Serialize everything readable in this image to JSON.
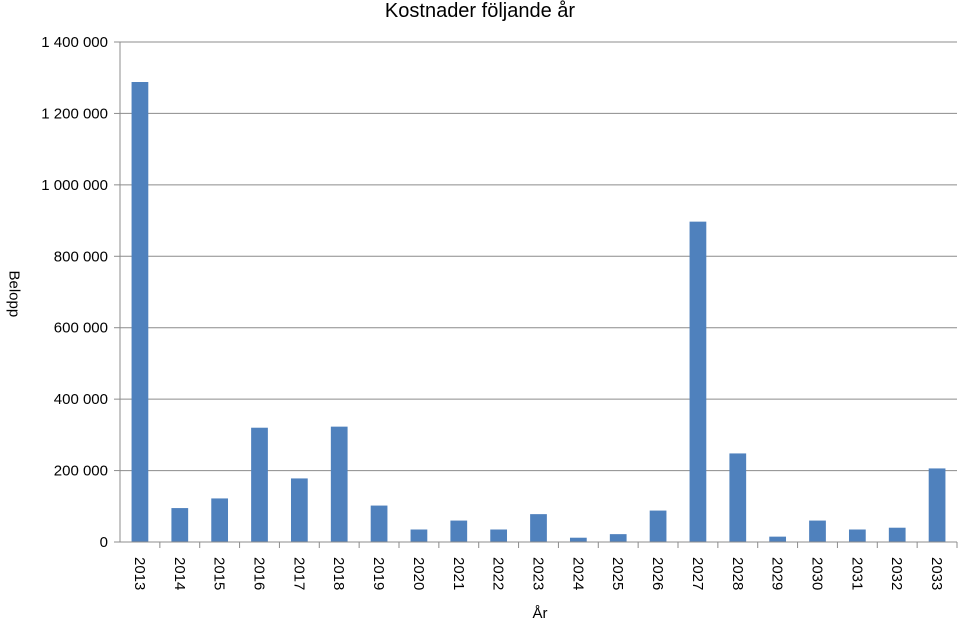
{
  "chart_data": {
    "type": "bar",
    "title": "Kostnader följande år",
    "xlabel": "År",
    "ylabel": "Belopp",
    "categories": [
      "2013",
      "2014",
      "2015",
      "2016",
      "2017",
      "2018",
      "2019",
      "2020",
      "2021",
      "2022",
      "2023",
      "2024",
      "2025",
      "2026",
      "2027",
      "2028",
      "2029",
      "2030",
      "2031",
      "2032",
      "2033"
    ],
    "values": [
      1288000,
      95000,
      122000,
      320000,
      178000,
      323000,
      102000,
      35000,
      60000,
      35000,
      78000,
      12000,
      22000,
      88000,
      897000,
      248000,
      15000,
      60000,
      35000,
      40000,
      206000
    ],
    "ylim": [
      0,
      1400000
    ],
    "yticks": [
      "0",
      "200 000",
      "400 000",
      "600 000",
      "800 000",
      "1 000 000",
      "1 200 000",
      "1 400 000"
    ],
    "ytick_values": [
      0,
      200000,
      400000,
      600000,
      800000,
      1000000,
      1200000,
      1400000
    ],
    "grid": true,
    "bar_color": "#4f81bd"
  }
}
